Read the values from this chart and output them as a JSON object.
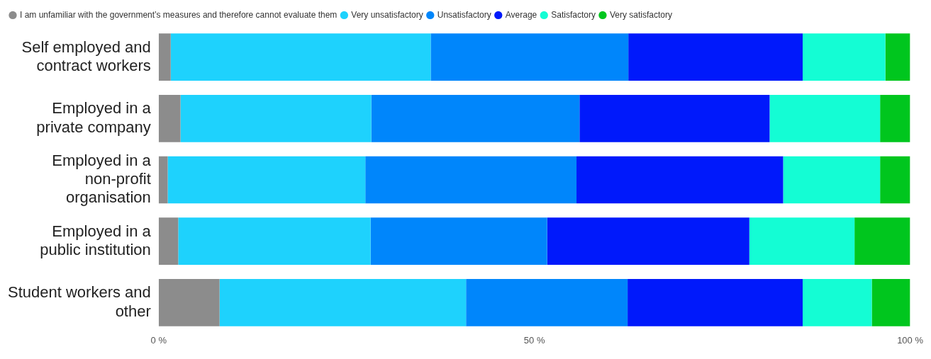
{
  "chart_data": {
    "type": "bar",
    "orientation": "horizontal",
    "stacked": true,
    "categories": [
      "Self employed and contract workers",
      "Employed in a private company",
      "Employed in a non-profit organisation",
      "Employed in a public institution",
      "Student workers and other"
    ],
    "series": [
      {
        "name": "I am unfamiliar with the government’s measures and therefore cannot evaluate them",
        "color": "#8c8c8c",
        "values": [
          1.6,
          2.9,
          1.2,
          2.6,
          8.1
        ]
      },
      {
        "name": "Very unsatisfactory",
        "color": "#1ed2fd",
        "values": [
          34.6,
          25.4,
          26.3,
          25.6,
          32.8
        ]
      },
      {
        "name": "Unsatisfactory",
        "color": "#0086fb",
        "values": [
          26.3,
          27.7,
          28.1,
          23.5,
          21.5
        ]
      },
      {
        "name": "Average",
        "color": "#0019fb",
        "values": [
          23.2,
          25.3,
          27.5,
          26.9,
          23.3
        ]
      },
      {
        "name": "Satisfactory",
        "color": "#14fdd4",
        "values": [
          11.0,
          14.7,
          12.9,
          14.0,
          9.2
        ]
      },
      {
        "name": "Very satisfactory",
        "color": "#00c61e",
        "values": [
          3.3,
          4.0,
          4.0,
          7.4,
          5.1
        ]
      }
    ],
    "xlim": [
      0,
      100
    ],
    "xticks": [
      {
        "value": 0,
        "label": "0 %"
      },
      {
        "value": 50,
        "label": "50 %"
      },
      {
        "value": 100,
        "label": "100 %"
      }
    ],
    "legend": "top left",
    "grid": false
  }
}
